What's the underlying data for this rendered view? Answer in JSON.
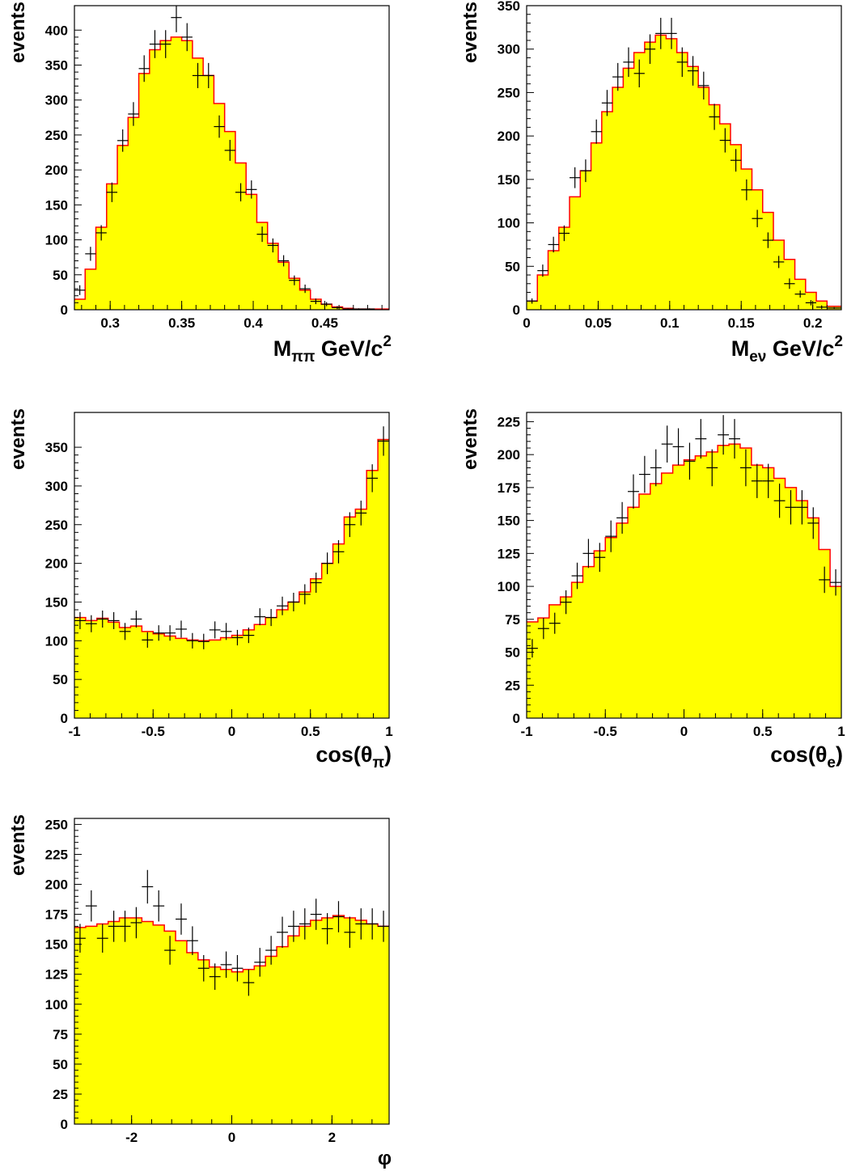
{
  "colors": {
    "fill": "#ffff00",
    "line": "#ff0000",
    "data": "#000000"
  },
  "chart_data": [
    {
      "type": "histogram",
      "ylabel": "events",
      "xlabel": "M_ππ GeV/c²",
      "xlabel_main": "M",
      "xlabel_sub": "ππ",
      "xlabel_rest": " GeV/c",
      "xlabel_sup": "2",
      "xlim": [
        0.275,
        0.495
      ],
      "ylim": [
        0,
        435
      ],
      "xticks": [
        {
          "v": 0.3,
          "label": "0.3"
        },
        {
          "v": 0.35,
          "label": "0.35"
        },
        {
          "v": 0.4,
          "label": "0.4"
        },
        {
          "v": 0.45,
          "label": "0.45"
        }
      ],
      "yticks": [
        {
          "v": 0,
          "label": "0"
        },
        {
          "v": 50,
          "label": "50"
        },
        {
          "v": 100,
          "label": "100"
        },
        {
          "v": 150,
          "label": "150"
        },
        {
          "v": 200,
          "label": "200"
        },
        {
          "v": 250,
          "label": "250"
        },
        {
          "v": 300,
          "label": "300"
        },
        {
          "v": 350,
          "label": "350"
        },
        {
          "v": 400,
          "label": "400"
        }
      ],
      "bin_edges": [
        0.275,
        0.2825,
        0.29,
        0.2975,
        0.305,
        0.3125,
        0.32,
        0.3275,
        0.335,
        0.3425,
        0.35,
        0.3575,
        0.365,
        0.3725,
        0.38,
        0.3875,
        0.395,
        0.4025,
        0.41,
        0.4175,
        0.425,
        0.4325,
        0.44,
        0.4475,
        0.455,
        0.4625,
        0.47,
        0.4775,
        0.485,
        0.495
      ],
      "mc": [
        15,
        58,
        118,
        180,
        235,
        275,
        338,
        372,
        385,
        390,
        385,
        360,
        335,
        295,
        255,
        210,
        165,
        125,
        95,
        68,
        45,
        28,
        15,
        8,
        4,
        2,
        1,
        1,
        1
      ],
      "data": [
        28,
        80,
        110,
        168,
        242,
        280,
        345,
        380,
        380,
        418,
        390,
        335,
        335,
        262,
        228,
        168,
        172,
        108,
        92,
        70,
        42,
        30,
        12,
        8,
        3,
        1,
        1,
        1,
        0
      ],
      "errors": [
        7,
        10,
        11,
        14,
        16,
        17,
        19,
        20,
        20,
        21,
        20,
        18,
        18,
        16,
        15,
        13,
        13,
        11,
        10,
        8,
        7,
        6,
        4,
        3,
        2,
        1,
        1,
        1,
        0
      ]
    },
    {
      "type": "histogram",
      "ylabel": "events",
      "xlabel": "M_eν GeV/c²",
      "xlabel_main": "M",
      "xlabel_sub": "eν",
      "xlabel_rest": " GeV/c",
      "xlabel_sup": "2",
      "xlim": [
        0,
        0.22
      ],
      "ylim": [
        0,
        350
      ],
      "xticks": [
        {
          "v": 0,
          "label": "0"
        },
        {
          "v": 0.05,
          "label": "0.05"
        },
        {
          "v": 0.1,
          "label": "0.1"
        },
        {
          "v": 0.15,
          "label": "0.15"
        },
        {
          "v": 0.2,
          "label": "0.2"
        }
      ],
      "yticks": [
        {
          "v": 0,
          "label": "0"
        },
        {
          "v": 50,
          "label": "50"
        },
        {
          "v": 100,
          "label": "100"
        },
        {
          "v": 150,
          "label": "150"
        },
        {
          "v": 200,
          "label": "200"
        },
        {
          "v": 250,
          "label": "250"
        },
        {
          "v": 300,
          "label": "300"
        },
        {
          "v": 350,
          "label": "350"
        }
      ],
      "bin_edges": [
        0,
        0.0075,
        0.015,
        0.0225,
        0.03,
        0.0375,
        0.045,
        0.0525,
        0.06,
        0.0675,
        0.075,
        0.0825,
        0.09,
        0.0975,
        0.105,
        0.1125,
        0.12,
        0.1275,
        0.135,
        0.1425,
        0.15,
        0.1575,
        0.165,
        0.1725,
        0.18,
        0.1875,
        0.195,
        0.2025,
        0.21,
        0.22
      ],
      "mc": [
        10,
        40,
        68,
        95,
        130,
        160,
        192,
        228,
        256,
        278,
        296,
        308,
        316,
        312,
        296,
        280,
        256,
        236,
        214,
        190,
        162,
        138,
        112,
        80,
        58,
        35,
        20,
        10,
        4
      ],
      "data": [
        10,
        45,
        75,
        88,
        152,
        160,
        205,
        238,
        268,
        285,
        272,
        300,
        318,
        318,
        285,
        275,
        258,
        222,
        195,
        172,
        138,
        105,
        80,
        55,
        30,
        18,
        8,
        3,
        2
      ],
      "errors": [
        3,
        7,
        9,
        9,
        12,
        13,
        14,
        15,
        16,
        17,
        16,
        17,
        18,
        18,
        17,
        17,
        16,
        15,
        14,
        13,
        12,
        10,
        9,
        7,
        6,
        4,
        3,
        2,
        1
      ]
    },
    {
      "type": "histogram",
      "ylabel": "events",
      "xlabel": "cos(θ_π)",
      "xlabel_main": "cos(θ",
      "xlabel_sub": "π",
      "xlabel_rest": ")",
      "xlabel_sup": "",
      "xlim": [
        -1,
        1
      ],
      "ylim": [
        0,
        395
      ],
      "xticks": [
        {
          "v": -1,
          "label": "-1"
        },
        {
          "v": -0.5,
          "label": "-0.5"
        },
        {
          "v": 0,
          "label": "0"
        },
        {
          "v": 0.5,
          "label": "0.5"
        },
        {
          "v": 1,
          "label": "1"
        }
      ],
      "yticks": [
        {
          "v": 0,
          "label": "0"
        },
        {
          "v": 50,
          "label": "50"
        },
        {
          "v": 100,
          "label": "100"
        },
        {
          "v": 150,
          "label": "150"
        },
        {
          "v": 200,
          "label": "200"
        },
        {
          "v": 250,
          "label": "250"
        },
        {
          "v": 300,
          "label": "300"
        },
        {
          "v": 350,
          "label": "350"
        }
      ],
      "nbins": 28,
      "mc": [
        130,
        126,
        129,
        124,
        117,
        119,
        112,
        109,
        106,
        103,
        101,
        100,
        101,
        104,
        107,
        114,
        121,
        130,
        140,
        150,
        163,
        180,
        200,
        225,
        260,
        270,
        320,
        360
      ],
      "data": [
        126,
        122,
        128,
        126,
        112,
        128,
        101,
        110,
        110,
        115,
        100,
        99,
        114,
        112,
        104,
        107,
        131,
        130,
        145,
        150,
        160,
        175,
        200,
        215,
        250,
        265,
        310,
        358
      ],
      "errors": [
        11,
        11,
        11,
        11,
        11,
        11,
        10,
        10,
        10,
        11,
        10,
        10,
        11,
        11,
        10,
        10,
        11,
        11,
        12,
        12,
        13,
        13,
        14,
        15,
        16,
        16,
        18,
        19
      ]
    },
    {
      "type": "histogram",
      "ylabel": "events",
      "xlabel": "cos(θ_e)",
      "xlabel_main": "cos(θ",
      "xlabel_sub": "e",
      "xlabel_rest": ")",
      "xlabel_sup": "",
      "xlim": [
        -1,
        1
      ],
      "ylim": [
        0,
        232
      ],
      "xticks": [
        {
          "v": -1,
          "label": "-1"
        },
        {
          "v": -0.5,
          "label": "-0.5"
        },
        {
          "v": 0,
          "label": "0"
        },
        {
          "v": 0.5,
          "label": "0.5"
        },
        {
          "v": 1,
          "label": "1"
        }
      ],
      "yticks": [
        {
          "v": 0,
          "label": "0"
        },
        {
          "v": 25,
          "label": "25"
        },
        {
          "v": 50,
          "label": "50"
        },
        {
          "v": 75,
          "label": "75"
        },
        {
          "v": 100,
          "label": "100"
        },
        {
          "v": 125,
          "label": "125"
        },
        {
          "v": 150,
          "label": "150"
        },
        {
          "v": 175,
          "label": "175"
        },
        {
          "v": 200,
          "label": "200"
        },
        {
          "v": 225,
          "label": "225"
        }
      ],
      "nbins": 28,
      "mc": [
        73,
        76,
        86,
        92,
        103,
        115,
        127,
        137,
        148,
        160,
        170,
        178,
        186,
        192,
        196,
        199,
        202,
        207,
        208,
        205,
        192,
        190,
        182,
        175,
        165,
        152,
        128,
        100
      ],
      "data": [
        53,
        68,
        72,
        88,
        108,
        125,
        122,
        138,
        152,
        172,
        185,
        190,
        208,
        206,
        195,
        212,
        190,
        215,
        212,
        190,
        180,
        180,
        165,
        160,
        160,
        148,
        105,
        103
      ],
      "errors": [
        7,
        8,
        8,
        9,
        10,
        11,
        11,
        12,
        12,
        13,
        14,
        14,
        14,
        14,
        14,
        15,
        14,
        15,
        15,
        14,
        13,
        13,
        13,
        13,
        13,
        12,
        10,
        10
      ]
    },
    {
      "type": "histogram",
      "ylabel": "events",
      "xlabel": "φ",
      "xlabel_main": "φ",
      "xlabel_sub": "",
      "xlabel_rest": "",
      "xlabel_sup": "",
      "xlim": [
        -3.1416,
        3.1416
      ],
      "ylim": [
        0,
        255
      ],
      "xticks": [
        {
          "v": -2,
          "label": "-2"
        },
        {
          "v": 0,
          "label": "0"
        },
        {
          "v": 2,
          "label": "2"
        }
      ],
      "yticks": [
        {
          "v": 0,
          "label": "0"
        },
        {
          "v": 25,
          "label": "25"
        },
        {
          "v": 50,
          "label": "50"
        },
        {
          "v": 75,
          "label": "75"
        },
        {
          "v": 100,
          "label": "100"
        },
        {
          "v": 125,
          "label": "125"
        },
        {
          "v": 150,
          "label": "150"
        },
        {
          "v": 175,
          "label": "175"
        },
        {
          "v": 200,
          "label": "200"
        },
        {
          "v": 225,
          "label": "225"
        },
        {
          "v": 250,
          "label": "250"
        }
      ],
      "nbins": 28,
      "mc": [
        164,
        165,
        167,
        169,
        172,
        172,
        169,
        166,
        161,
        153,
        143,
        137,
        131,
        129,
        127,
        129,
        132,
        140,
        148,
        157,
        165,
        170,
        172,
        174,
        172,
        170,
        167,
        165
      ],
      "data": [
        155,
        182,
        155,
        165,
        165,
        168,
        198,
        182,
        145,
        171,
        153,
        130,
        123,
        133,
        130,
        118,
        135,
        145,
        160,
        165,
        167,
        175,
        163,
        173,
        160,
        167,
        167,
        165
      ],
      "errors": [
        12,
        13,
        12,
        13,
        13,
        13,
        14,
        13,
        12,
        13,
        12,
        11,
        11,
        11,
        11,
        11,
        12,
        12,
        13,
        13,
        13,
        13,
        13,
        13,
        13,
        13,
        13,
        13
      ]
    }
  ]
}
